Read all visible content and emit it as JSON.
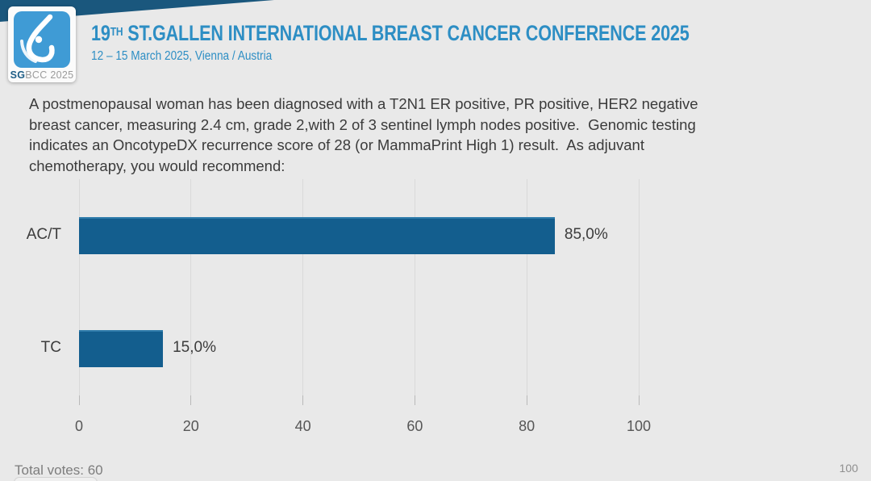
{
  "header": {
    "logo": {
      "icon": "sgbcc-breast-icon",
      "text_bold": "SG",
      "text_rest": "BCC 2025"
    },
    "title_number": "19",
    "title_ordinal": "TH",
    "title_rest": " ST.GALLEN INTERNATIONAL BREAST CANCER CONFERENCE 2025",
    "subtitle": "12 – 15 March 2025, Vienna / Austria"
  },
  "question_lines": [
    "A postmenopausal woman has been diagnosed with a T2N1 ER positive, PR positive, HER2 negative",
    "breast cancer, measuring 2.4 cm, grade 2,with 2 of 3 sentinel lymph nodes positive.  Genomic testing",
    "indicates an OncotypeDX recurrence score of 28 (or MammaPrint High 1) result.  As adjuvant",
    "chemotherapy, you would recommend:"
  ],
  "chart_data": {
    "type": "bar",
    "orientation": "horizontal",
    "title": "",
    "xlabel": "",
    "ylabel": "",
    "categories": [
      "AC/T",
      "TC"
    ],
    "values": [
      85.0,
      15.0
    ],
    "value_labels": [
      "85,0%",
      "15,0%"
    ],
    "xlim": [
      0,
      100
    ],
    "ticks": [
      0,
      20,
      40,
      60,
      80,
      100
    ],
    "grid": true,
    "legend": false,
    "bar_color": "#135e8e"
  },
  "footer": {
    "total_votes": "Total votes: 60",
    "page_number": "100"
  },
  "colors": {
    "background": "#e9e9e9",
    "accent_blue": "#2d8ec4",
    "navy_wedge": "#1a577d",
    "logo_blue": "#3f9bd5",
    "bar_blue": "#135e8e"
  }
}
